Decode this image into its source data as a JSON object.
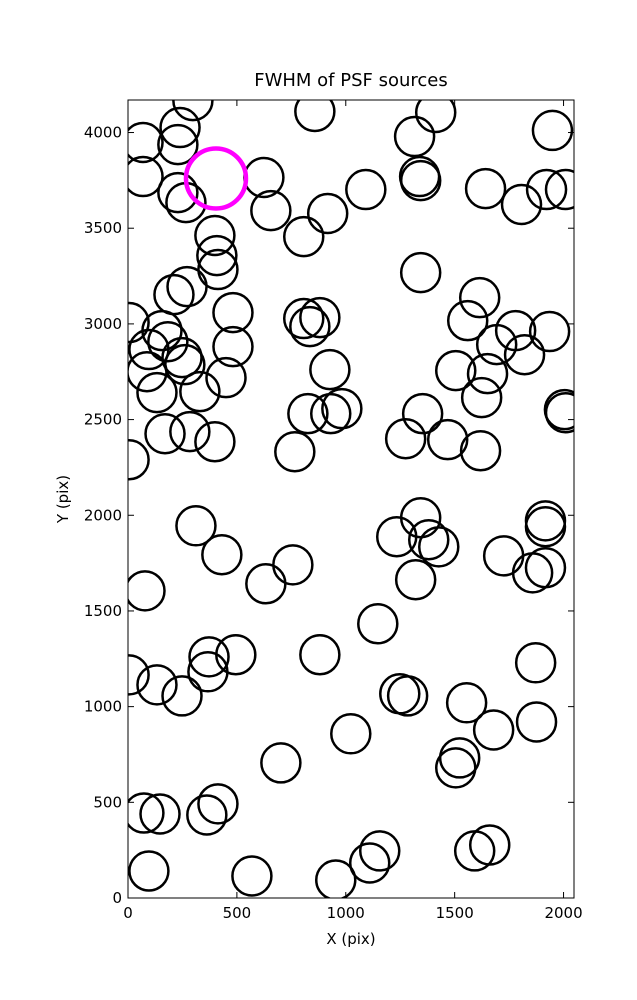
{
  "chart_data": {
    "type": "scatter",
    "title": "FWHM of PSF sources",
    "x_label": "X (pix)",
    "y_label": "Y (pix)",
    "xlim": [
      0,
      2048
    ],
    "ylim": [
      0,
      4170
    ],
    "xticks": [
      0,
      500,
      1000,
      1500,
      2000
    ],
    "yticks": [
      0,
      500,
      1000,
      1500,
      2000,
      2500,
      3000,
      3500,
      4000
    ],
    "series": [
      {
        "color": "#000000",
        "x": [
          298,
          69,
          239,
          229,
          858,
          1413,
          1316,
          1949,
          69,
          229,
          266,
          624,
          656,
          1092,
          1339,
          1344,
          1642,
          1807,
          1922,
          2009,
          917,
          807,
          399,
          408,
          413,
          1344,
          271,
          211,
          482,
          5,
          807,
          835,
          881,
          156,
          183,
          482,
          96,
          248,
          1615,
          1560,
          1693,
          1780,
          1821,
          1936,
          87,
          133,
          261,
          450,
          330,
          927,
          1505,
          1651,
          1624,
          982,
          826,
          931,
          170,
          284,
          399,
          1353,
          1275,
          1468,
          1619,
          766,
          5,
          2004,
          2009,
          312,
          431,
          1344,
          1234,
          1381,
          1427,
          1917,
          1917,
          1725,
          1858,
          1917,
          78,
          757,
          633,
          1321,
          1147,
          5,
          133,
          372,
          367,
          495,
          881,
          248,
          1248,
          1284,
          1872,
          1555,
          1876,
          1023,
          1679,
          1523,
          1505,
          702,
          73,
          147,
          413,
          362,
          96,
          569,
          954,
          1110,
          1156,
          1592,
          1661
        ],
        "values": [
          4167,
          3948,
          4026,
          3937,
          4110,
          4105,
          3979,
          4011,
          3770,
          3686,
          3634,
          3765,
          3592,
          3702,
          3770,
          3749,
          3707,
          3624,
          3702,
          3702,
          3577,
          3456,
          3462,
          3357,
          3284,
          3268,
          3195,
          3153,
          3059,
          3007,
          3028,
          2986,
          3033,
          2965,
          2907,
          2881,
          2866,
          2824,
          3137,
          3017,
          2892,
          2965,
          2839,
          2960,
          2750,
          2641,
          2787,
          2719,
          2646,
          2761,
          2756,
          2740,
          2615,
          2557,
          2531,
          2531,
          2426,
          2437,
          2384,
          2531,
          2400,
          2395,
          2337,
          2332,
          2290,
          2552,
          2536,
          1945,
          1794,
          1987,
          1888,
          1872,
          1835,
          1971,
          1940,
          1788,
          1699,
          1726,
          1605,
          1741,
          1642,
          1663,
          1433,
          1166,
          1114,
          1260,
          1182,
          1271,
          1271,
          1056,
          1067,
          1056,
          1229,
          1020,
          920,
          858,
          878,
          732,
          680,
          706,
          444,
          439,
          492,
          434,
          141,
          115,
          94,
          183,
          246,
          246,
          277
        ]
      },
      {
        "color": "#ff00ff",
        "x": [
          404
        ],
        "values": [
          3760
        ]
      }
    ]
  }
}
